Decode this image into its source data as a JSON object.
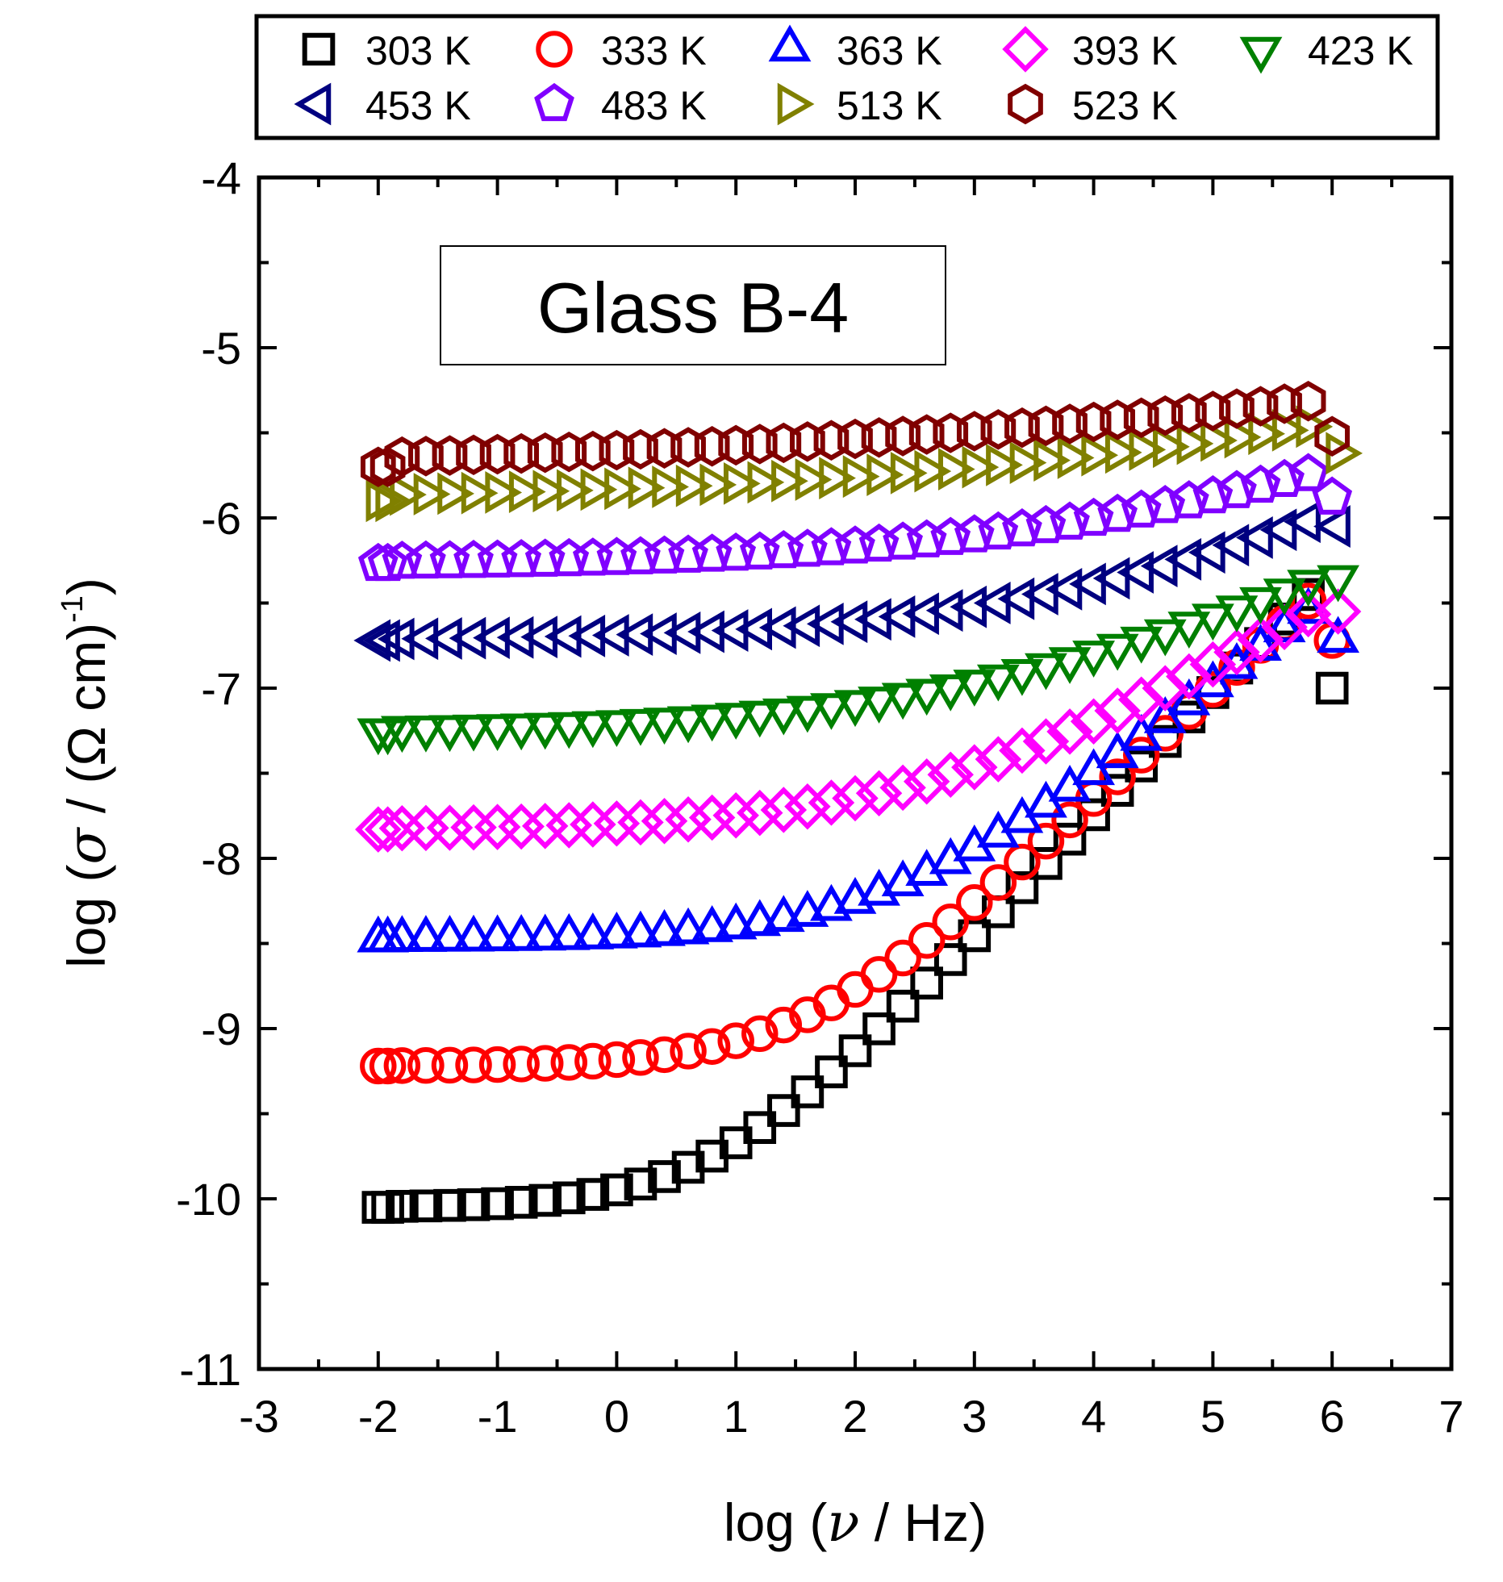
{
  "chart_data": {
    "type": "scatter",
    "title": "",
    "annotation": "Glass B-4",
    "xlabel": {
      "pre": "log (",
      "sym": "ν",
      "post": " / Hz)"
    },
    "ylabel": {
      "pre": "log (",
      "sym": "σ",
      "mid": " / (Ω cm)",
      "sup": "-1",
      "post": ")"
    },
    "xlim": [
      -3,
      7
    ],
    "ylim": [
      -11,
      -4
    ],
    "xticks": [
      "-3",
      "-2",
      "-1",
      "0",
      "1",
      "2",
      "3",
      "4",
      "5",
      "6",
      "7"
    ],
    "yticks": [
      "-11",
      "-10",
      "-9",
      "-8",
      "-7",
      "-6",
      "-5",
      "-4"
    ],
    "legend_position": "top",
    "series": [
      {
        "name": "303 K",
        "color": "#000000",
        "marker": "square",
        "sigma_dc": -10.05,
        "x_onset": 0.8,
        "slope": 0.72,
        "plateau_points": 2,
        "end_point": [
          6.0,
          -7.0
        ]
      },
      {
        "name": "333 K",
        "color": "#ff0000",
        "marker": "circle",
        "sigma_dc": -9.22,
        "x_onset": 1.6,
        "slope": 0.65,
        "plateau_points": 2,
        "end_point": [
          6.0,
          -6.72
        ]
      },
      {
        "name": "363 K",
        "color": "#0000ff",
        "marker": "triangle-up",
        "sigma_dc": -8.48,
        "x_onset": 2.3,
        "slope": 0.55,
        "plateau_points": 2,
        "end_point": [
          6.05,
          -6.72
        ]
      },
      {
        "name": "393 K",
        "color": "#ff00ff",
        "marker": "diamond",
        "sigma_dc": -7.83,
        "x_onset": 2.7,
        "slope": 0.4,
        "plateau_points": 2,
        "end_point": [
          6.05,
          -6.55
        ]
      },
      {
        "name": "423 K",
        "color": "#008000",
        "marker": "triangle-down",
        "sigma_dc": -7.25,
        "x_onset": 3.1,
        "slope": 0.3,
        "plateau_points": 2,
        "end_point": [
          6.05,
          -6.35
        ]
      },
      {
        "name": "453 K",
        "color": "#000080",
        "marker": "triangle-left",
        "sigma_dc": -6.72,
        "x_onset": 3.8,
        "slope": 0.3,
        "plateau_points": 2,
        "end_point": [
          6.05,
          -6.05
        ]
      },
      {
        "name": "483 K",
        "color": "#8000ff",
        "marker": "pentagon",
        "sigma_dc": -6.27,
        "x_onset": 4.3,
        "slope": 0.25,
        "plateau_points": 2,
        "end_point": [
          6.0,
          -5.88
        ]
      },
      {
        "name": "513 K",
        "color": "#808000",
        "marker": "triangle-right",
        "sigma_dc": -5.9,
        "x_onset": 4.4,
        "slope": 0.17,
        "plateau_points": 2,
        "end_point": [
          6.05,
          -5.62
        ]
      },
      {
        "name": "523 K",
        "color": "#800000",
        "marker": "hexagon",
        "sigma_dc": -5.7,
        "x_onset": 4.6,
        "slope": 0.13,
        "plateau_points": 2,
        "end_point": [
          6.0,
          -5.52
        ]
      }
    ]
  }
}
